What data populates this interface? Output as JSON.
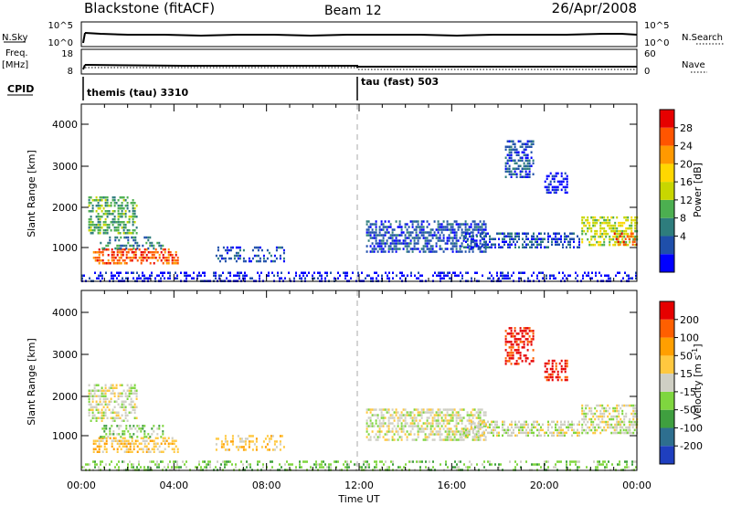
{
  "header": {
    "station": "Blackstone (fitACF)",
    "beam": "Beam 12",
    "date": "26/Apr/2008"
  },
  "noise_panel": {
    "left_label": "N.Sky",
    "right_label": "N.Search",
    "left_ticks": [
      "10^5",
      "10^0"
    ],
    "right_ticks": [
      "10^5",
      "10^0"
    ]
  },
  "freq_panel": {
    "left_label": "Freq.",
    "left_unit": "[MHz]",
    "right_label": "Nave",
    "left_ticks": [
      "18",
      "8"
    ],
    "right_ticks": [
      "60",
      "0"
    ]
  },
  "cpid": {
    "label": "CPID",
    "modes": [
      {
        "name": "themis (tau) 3310",
        "start_hour": 0
      },
      {
        "name": "tau (fast) 503",
        "start_hour": 12
      }
    ]
  },
  "chart_data": [
    {
      "type": "heatmap",
      "name": "power",
      "ylabel": "Slant Range [km]",
      "xlabel": "",
      "x_range_hours": [
        0,
        24
      ],
      "y_range_km": [
        180,
        4600
      ],
      "y_ticks": [
        "1000",
        "2000",
        "3000",
        "4000"
      ],
      "x_ticks": [
        "00:00",
        "04:00",
        "08:00",
        "12:00",
        "16:00",
        "20:00",
        "00:00"
      ],
      "colorbar": {
        "label": "Power [dB]",
        "tick_labels": [
          "28",
          "24",
          "20",
          "16",
          "12",
          "8",
          "4"
        ],
        "colors": [
          "#0000ff",
          "#1f4faa",
          "#2e7d7d",
          "#4caf50",
          "#c8d600",
          "#ffd700",
          "#ff9900",
          "#ff5500",
          "#e60000"
        ]
      },
      "regions": [
        {
          "t0": 0.3,
          "t1": 2.4,
          "r0": 1400,
          "r1": 2300,
          "level": 3
        },
        {
          "t0": 0.5,
          "t1": 4.2,
          "r0": 600,
          "r1": 1000,
          "level": 7
        },
        {
          "t0": 0.8,
          "t1": 3.5,
          "r0": 1000,
          "r1": 1300,
          "level": 2
        },
        {
          "t0": 5.8,
          "t1": 8.8,
          "r0": 700,
          "r1": 1050,
          "level": 1
        },
        {
          "t0": 12.3,
          "t1": 17.5,
          "r0": 900,
          "r1": 1700,
          "level": 1
        },
        {
          "t0": 16.5,
          "t1": 21.5,
          "r0": 1000,
          "r1": 1400,
          "level": 1
        },
        {
          "t0": 18.3,
          "t1": 19.5,
          "r0": 2800,
          "r1": 3700,
          "level": 1
        },
        {
          "t0": 20.0,
          "t1": 21.0,
          "r0": 2400,
          "r1": 2900,
          "level": 0
        },
        {
          "t0": 21.6,
          "t1": 24.0,
          "r0": 1100,
          "r1": 1800,
          "level": 4
        },
        {
          "t0": 23.0,
          "t1": 24.0,
          "r0": 1100,
          "r1": 1400,
          "level": 7
        },
        {
          "t0": 0.0,
          "t1": 24.0,
          "r0": 180,
          "r1": 420,
          "level": 0
        }
      ]
    },
    {
      "type": "heatmap",
      "name": "velocity",
      "ylabel": "Slant Range [km]",
      "xlabel": "Time UT",
      "x_range_hours": [
        0,
        24
      ],
      "y_range_km": [
        180,
        4600
      ],
      "y_ticks": [
        "1000",
        "2000",
        "3000",
        "4000"
      ],
      "x_ticks": [
        "00:00",
        "04:00",
        "08:00",
        "12:00",
        "16:00",
        "20:00",
        "00:00"
      ],
      "colorbar": {
        "label": "Velocity [m s",
        "label_exponent": "-1",
        "label_close": "]",
        "tick_labels": [
          "200",
          "100",
          "50",
          "15",
          "-15",
          "-50",
          "-100",
          "-200"
        ],
        "colors": [
          "#1f3fbf",
          "#2e6f8f",
          "#3f9f3f",
          "#7fd63f",
          "#cfcfc4",
          "#ffc83f",
          "#ff9f00",
          "#ff5f00",
          "#e60000"
        ]
      },
      "regions": [
        {
          "t0": 0.3,
          "t1": 2.4,
          "r0": 1400,
          "r1": 2300,
          "level": 4
        },
        {
          "t0": 0.5,
          "t1": 4.2,
          "r0": 600,
          "r1": 1000,
          "level": 5
        },
        {
          "t0": 0.8,
          "t1": 3.5,
          "r0": 1000,
          "r1": 1300,
          "level": 3
        },
        {
          "t0": 5.8,
          "t1": 8.8,
          "r0": 700,
          "r1": 1050,
          "level": 5
        },
        {
          "t0": 12.3,
          "t1": 17.5,
          "r0": 900,
          "r1": 1700,
          "level": 4
        },
        {
          "t0": 16.5,
          "t1": 21.5,
          "r0": 1000,
          "r1": 1400,
          "level": 4
        },
        {
          "t0": 18.3,
          "t1": 19.5,
          "r0": 2800,
          "r1": 3700,
          "level": 8
        },
        {
          "t0": 20.0,
          "t1": 21.0,
          "r0": 2400,
          "r1": 2900,
          "level": 8
        },
        {
          "t0": 21.6,
          "t1": 24.0,
          "r0": 1100,
          "r1": 1800,
          "level": 4
        },
        {
          "t0": 23.0,
          "t1": 24.0,
          "r0": 1100,
          "r1": 1400,
          "level": 4
        },
        {
          "t0": 0.0,
          "t1": 24.0,
          "r0": 180,
          "r1": 420,
          "level": 3
        }
      ]
    }
  ]
}
